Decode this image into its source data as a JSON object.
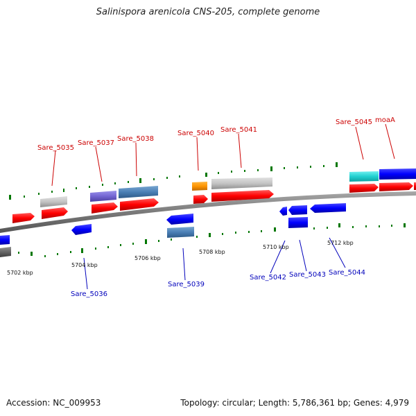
{
  "title": "Salinispora arenicola CNS-205, complete genome",
  "footer": {
    "accession": "Accession: NC_009953",
    "stats": "Topology: circular; Length: 5,786,361 bp; Genes: 4,979"
  },
  "scale_labels": [
    "5702 kbp",
    "5704 kbp",
    "5706 kbp",
    "5708 kbp",
    "5710 kbp",
    "5712 kbp"
  ],
  "forward_gene_labels": [
    "Sare_5035",
    "Sare_5037",
    "Sare_5038",
    "Sare_5040",
    "Sare_5041",
    "Sare_5045",
    "moaA"
  ],
  "reverse_gene_labels": [
    "Sare_5036",
    "Sare_5039",
    "Sare_5042",
    "Sare_5043",
    "Sare_5044"
  ],
  "colors": {
    "forward_label": "#cc0000",
    "reverse_label": "#0000bb",
    "cds_forward": "#ff0000",
    "cds_reverse": "#0000ff",
    "backbone": "#808080",
    "tick": "#007700"
  }
}
